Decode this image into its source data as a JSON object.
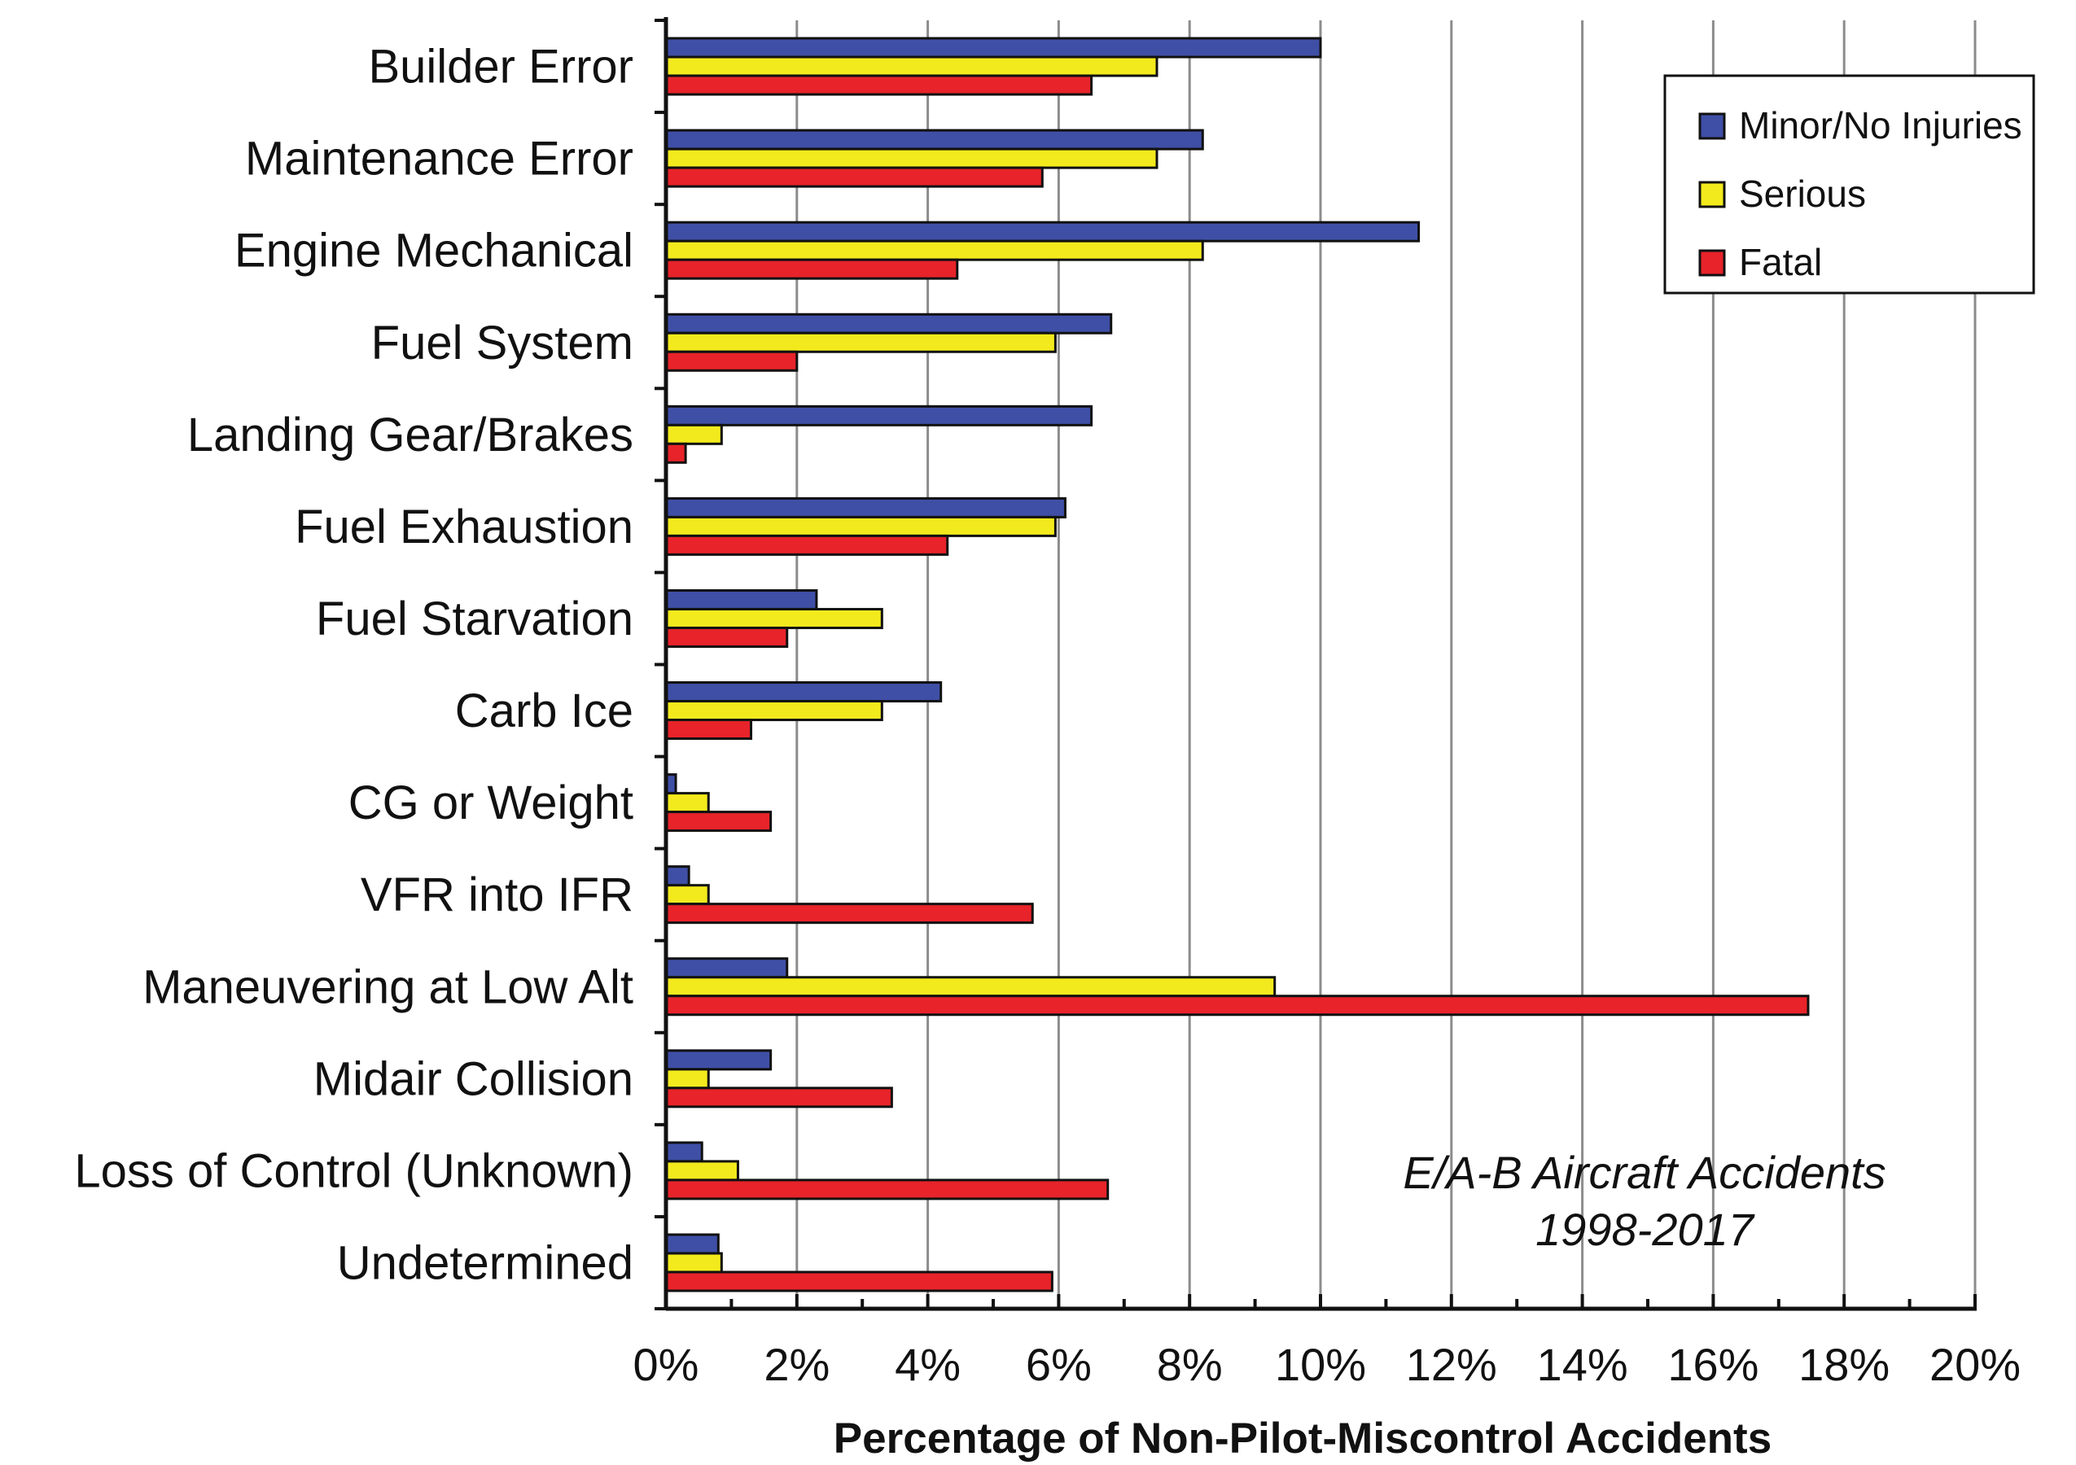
{
  "chart_data": {
    "type": "bar",
    "orientation": "horizontal",
    "title": "",
    "xlabel": "Percentage of Non-Pilot-Miscontrol Accidents",
    "ylabel": "",
    "xlim": [
      0,
      20
    ],
    "x_ticks": [
      "0%",
      "2%",
      "4%",
      "6%",
      "8%",
      "10%",
      "12%",
      "14%",
      "16%",
      "18%",
      "20%"
    ],
    "grid": "vertical",
    "legend_position": "top-right",
    "annotation": [
      "E/A-B Aircraft Accidents",
      "1998-2017"
    ],
    "categories": [
      "Builder Error",
      "Maintenance Error",
      "Engine Mechanical",
      "Fuel System",
      "Landing Gear/Brakes",
      "Fuel Exhaustion",
      "Fuel Starvation",
      "Carb Ice",
      "CG or Weight",
      "VFR into IFR",
      "Maneuvering at Low Alt",
      "Midair Collision",
      "Loss of Control (Unknown)",
      "Undetermined"
    ],
    "series": [
      {
        "name": "Minor/No Injuries",
        "color": "#3f4fa6",
        "values": [
          10.0,
          8.2,
          11.5,
          6.8,
          6.5,
          6.1,
          2.3,
          4.2,
          0.15,
          0.35,
          1.85,
          1.6,
          0.55,
          0.8
        ]
      },
      {
        "name": "Serious",
        "color": "#f3ea1d",
        "values": [
          7.5,
          7.5,
          8.2,
          5.95,
          0.85,
          5.95,
          3.3,
          3.3,
          0.65,
          0.65,
          9.3,
          0.65,
          1.1,
          0.85
        ]
      },
      {
        "name": "Fatal",
        "color": "#e8232a",
        "values": [
          6.5,
          5.75,
          4.45,
          2.0,
          0.3,
          4.3,
          1.85,
          1.3,
          1.6,
          5.6,
          17.45,
          3.45,
          6.75,
          5.9
        ]
      }
    ]
  }
}
